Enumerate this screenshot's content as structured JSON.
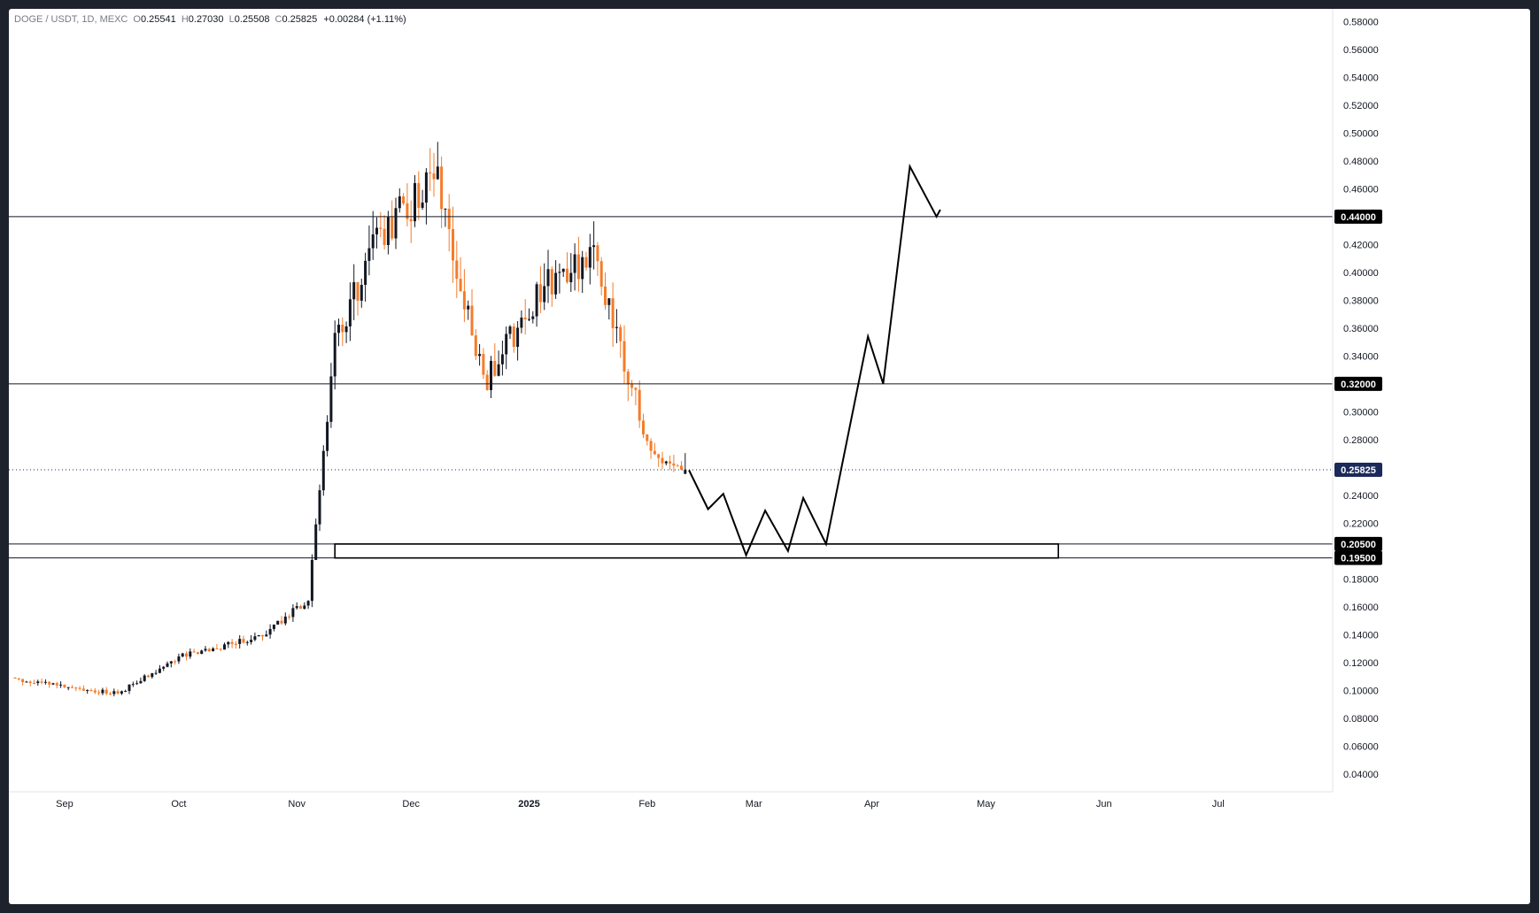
{
  "legend": {
    "symbol": "DOGE / USDT, 1D, MEXC",
    "open_label": "O",
    "open": "0.25541",
    "high_label": "H",
    "high": "0.27030",
    "low_label": "L",
    "low": "0.25508",
    "close_label": "C",
    "close": "0.25825",
    "change": "+0.00284 (+1.11%)"
  },
  "colors": {
    "up": "#131722",
    "down": "#f57c2a",
    "level_line": "#131722",
    "current_price_tag": "#1c2a5a",
    "level_tag": "#000000"
  },
  "chart_data": {
    "type": "candlestick",
    "symbol": "DOGE / USDT",
    "interval": "1D",
    "exchange": "MEXC",
    "x_tick_labels": [
      "Sep",
      "Oct",
      "Nov",
      "Dec",
      "2025",
      "Feb",
      "Mar",
      "Apr",
      "May",
      "Jun",
      "Jul"
    ],
    "y_tick_labels": [
      "0.58000",
      "0.56000",
      "0.54000",
      "0.52000",
      "0.50000",
      "0.48000",
      "0.46000",
      "0.44000",
      "0.42000",
      "0.40000",
      "0.38000",
      "0.36000",
      "0.34000",
      "0.32000",
      "0.30000",
      "0.28000",
      "0.26000",
      "0.24000",
      "0.22000",
      "0.20000",
      "0.18000",
      "0.16000",
      "0.14000",
      "0.12000",
      "0.10000",
      "0.08000",
      "0.06000",
      "0.04000"
    ],
    "ylim": [
      0.03,
      0.585
    ],
    "grid": false,
    "last_price": "0.25825",
    "horizontal_levels": [
      {
        "price": 0.44,
        "label": "0.44000"
      },
      {
        "price": 0.32,
        "label": "0.32000"
      },
      {
        "price": 0.205,
        "label": "0.20500"
      },
      {
        "price": 0.195,
        "label": "0.19500"
      }
    ],
    "support_zone": {
      "top": 0.205,
      "bottom": 0.195,
      "x_start": "2024-11-11",
      "x_end": "2025-05-20"
    },
    "key_closes": [
      {
        "x": "2024-08-19",
        "close": 0.107
      },
      {
        "x": "2024-09-15",
        "close": 0.098
      },
      {
        "x": "2024-10-01",
        "close": 0.124
      },
      {
        "x": "2024-10-23",
        "close": 0.139
      },
      {
        "x": "2024-11-04",
        "close": 0.165
      },
      {
        "x": "2024-11-11",
        "close": 0.35
      },
      {
        "x": "2024-11-23",
        "close": 0.43
      },
      {
        "x": "2024-12-08",
        "close": 0.466
      },
      {
        "x": "2024-12-20",
        "close": 0.32
      },
      {
        "x": "2025-01-05",
        "close": 0.39
      },
      {
        "x": "2025-01-18",
        "close": 0.41
      },
      {
        "x": "2025-02-02",
        "close": 0.27
      },
      {
        "x": "2025-02-11",
        "close": 0.25825
      }
    ],
    "projection": [
      {
        "x": "2025-02-12",
        "y": 0.258
      },
      {
        "x": "2025-02-17",
        "y": 0.23
      },
      {
        "x": "2025-02-21",
        "y": 0.241
      },
      {
        "x": "2025-02-27",
        "y": 0.197
      },
      {
        "x": "2025-03-04",
        "y": 0.229
      },
      {
        "x": "2025-03-10",
        "y": 0.2
      },
      {
        "x": "2025-03-14",
        "y": 0.238
      },
      {
        "x": "2025-03-20",
        "y": 0.205
      },
      {
        "x": "2025-03-31",
        "y": 0.354
      },
      {
        "x": "2025-04-04",
        "y": 0.32
      },
      {
        "x": "2025-04-11",
        "y": 0.476
      },
      {
        "x": "2025-04-18",
        "y": 0.44
      },
      {
        "x": "2025-04-19",
        "y": 0.445
      }
    ]
  }
}
